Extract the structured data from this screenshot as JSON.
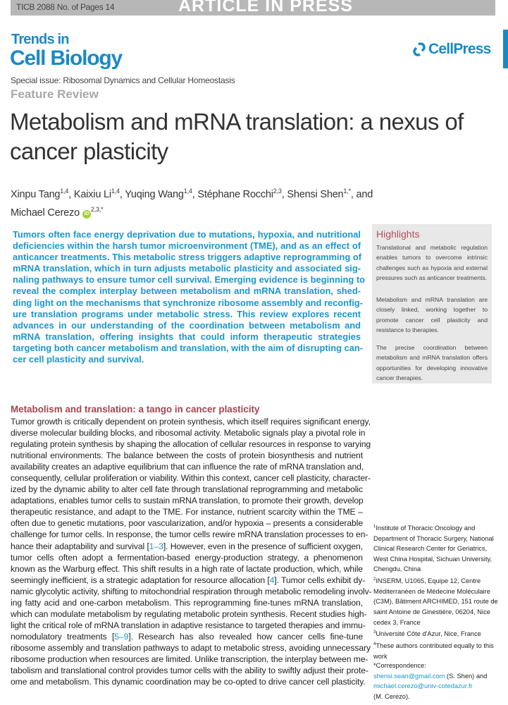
{
  "header": {
    "doc_id": "TICB 2088 No. of Pages 14",
    "banner": "ARTICLE IN PRESS"
  },
  "journal": {
    "line1": "Trends in",
    "line2": "Cell Biology",
    "publisher": "CellPress",
    "accent": "#1a8ac4"
  },
  "special_issue": "Special issue: Ribosomal Dynamics and Cellular Homeostasis",
  "article_type": "Feature Review",
  "title_lines": [
    "Metabolism and mRNA translation: a nexus of",
    "cancer plasticity"
  ],
  "authors": [
    {
      "name": "Xinpu Tang",
      "sup": "1,4",
      "sep": ", "
    },
    {
      "name": "Kaixiu Li",
      "sup": "1,4",
      "sep": ", "
    },
    {
      "name": "Yuqing Wang",
      "sup": "1,4",
      "sep": ", "
    },
    {
      "name": "Stéphane Rocchi",
      "sup": "2,3",
      "sep": ", "
    },
    {
      "name": "Shensi Shen",
      "sup": "1,*",
      "sep": ", and"
    },
    {
      "name": "Michael Cerezo",
      "sup": "2,3,*",
      "sep": "",
      "orcid": "iD"
    }
  ],
  "abstract_lines": [
    "Tumors often face energy deprivation due to mutations, hypoxia, and nutritional",
    "deficiencies within the harsh tumor microenvironment (TME), and as an effect of",
    "anticancer treatments. This metabolic stress triggers adaptive reprogramming of",
    "mRNA translation, which in turn adjusts metabolic plasticity and associated sig-",
    "naling pathways to ensure tumor cell survival. Emerging evidence is beginning to",
    "reveal the complex interplay between metabolism and mRNA translation, shed-",
    "ding light on the mechanisms that synchronize ribosome assembly and reconfig-",
    "ure translation programs under metabolic stress. This review explores recent",
    "advances in our understanding of the coordination between metabolism and",
    "mRNA translation, offering insights that could inform therapeutic strategies",
    "targeting both cancer metabolism and translation, with the aim of disrupting can-",
    "cer cell plasticity and survival."
  ],
  "highlights": {
    "heading": "Highlights",
    "items": [
      "Translational and metabolic regulation enables tumors to overcome intrinsic challenges such as hypoxia and external pressures such as anticancer treatments.",
      "Metabolism and mRNA translation are closely linked, working together to promote cancer cell plasticity and resistance to therapies.",
      "The precise coordination between metabolism and mRNA translation offers opportunities for developing innovative cancer therapies."
    ]
  },
  "section": {
    "heading": "Metabolism and translation: a tango in cancer plasticity",
    "lines": [
      "Tumor growth is critically dependent on protein synthesis, which itself requires significant energy,",
      "diverse molecular building blocks, and ribosomal activity. Metabolic signals play a pivotal role in",
      "regulating protein synthesis by shaping the allocation of cellular resources in response to varying",
      "nutritional environments. The balance between the costs of protein biosynthesis and nutrient",
      "availability creates an adaptive equilibrium that can influence the rate of mRNA translation and,",
      "consequently, cellular proliferation or viability. Within this context, cancer cell plasticity, character-",
      "ized by the dynamic ability to alter cell fate through translational reprogramming and metabolic",
      "adaptations, enables tumor cells to sustain mRNA translation, to promote their growth, develop",
      "therapeutic resistance, and adapt to the TME. For instance, nutrient scarcity within the TME –",
      "often due to genetic mutations, poor vascularization, and/or hypoxia – presents a considerable",
      "challenge for tumor cells. In response, the tumor cells rewire mRNA translation processes to en-",
      "hance their adaptability and survival [1–3]. However, even in the presence of sufficient oxygen,",
      "tumor cells often adopt a fermentation-based energy-production strategy, a phenomenon",
      "known as the Warburg effect. This shift results in a high rate of lactate production, which, while",
      "seemingly inefficient, is a strategic adaptation for resource allocation [4]. Tumor cells exhibit dy-",
      "namic glycolytic activity, shifting to mitochondrial respiration through metabolic remodeling involv-",
      "ing fatty acid and one-carbon metabolism. This reprogramming fine-tunes mRNA translation,",
      "which can modulate metabolism by regulating metabolic protein synthesis. Recent studies high-",
      "light the critical role of mRNA translation in adaptive resistance to targeted therapies and immu-",
      "nomodulatory treatments [5–9]. Research has also revealed how cancer cells fine-tune",
      "ribosome assembly and translation pathways to adapt to metabolic stress, avoiding unnecessary",
      "ribosome production when resources are limited. Unlike transcription, the interplay between me-",
      "tabolism and translational control provides tumor cells with the ability to swiftly adjust their prote-",
      "ome and metabolism. This dynamic coordination may be co-opted to drive cancer cell plasticity."
    ]
  },
  "affiliations": [
    {
      "sup": "1",
      "text": "Institute of Thoracic Oncology and Department of Thoracic Surgery, National Clinical Research Center for Geriatrics, West China Hospital, Sichuan University, Chengdu, China"
    },
    {
      "sup": "2",
      "text": "INSERM, U1065, Equipe 12, Centre Méditerranéen de Médecine Moléculaire (C3M), Bâtiment ARCHIMED, 151 route de saint Antoine de Ginestière, 06204, Nice cedex 3, France"
    },
    {
      "sup": "3",
      "text": "Université Côte d'Azur, Nice, France"
    },
    {
      "sup": "4",
      "text": "These authors contributed equally to this work"
    }
  ],
  "correspondence": {
    "label": "*Correspondence:",
    "email1": "shensi.sean@gmail.com",
    "who1": " (S. Shen) and",
    "email2": "michael.cerezo@univ-cotedazur.fr",
    "who2": "(M. Cerezo)."
  }
}
